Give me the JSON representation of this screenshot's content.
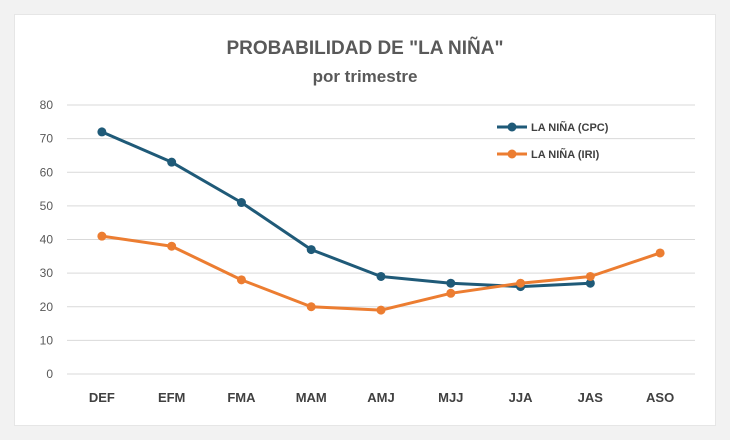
{
  "chart_data": {
    "type": "line",
    "title": "PROBABILIDAD DE \"LA NIÑA\"",
    "subtitle": "por trimestre",
    "xlabel": "",
    "ylabel": "",
    "categories": [
      "DEF",
      "EFM",
      "FMA",
      "MAM",
      "AMJ",
      "MJJ",
      "JJA",
      "JAS",
      "ASO"
    ],
    "ylim": [
      0,
      80
    ],
    "yticks": [
      0,
      10,
      20,
      30,
      40,
      50,
      60,
      70,
      80
    ],
    "grid": true,
    "legend_position": "top-right",
    "series": [
      {
        "name": "LA NIÑA (CPC)",
        "color": "#1f5a78",
        "values": [
          72,
          63,
          51,
          37,
          29,
          27,
          26,
          27,
          null
        ]
      },
      {
        "name": "LA NIÑA (IRI)",
        "color": "#ec7d31",
        "values": [
          41,
          38,
          28,
          20,
          19,
          24,
          27,
          29,
          36
        ]
      }
    ]
  }
}
